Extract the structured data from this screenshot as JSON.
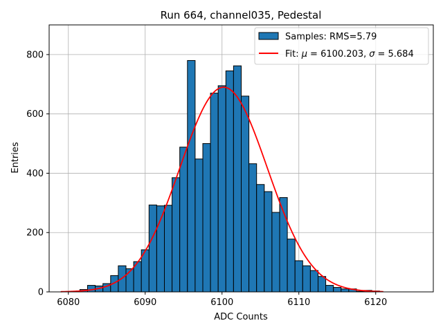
{
  "chart_data": {
    "type": "bar",
    "title": "Run 664, channel035, Pedestal",
    "xlabel": "ADC Counts",
    "ylabel": "Entries",
    "xlim": [
      6077.5,
      6127.5
    ],
    "ylim": [
      0,
      900
    ],
    "xticks": [
      6080,
      6090,
      6100,
      6110,
      6120
    ],
    "yticks": [
      0,
      200,
      400,
      600,
      800
    ],
    "grid": true,
    "legend_position": "top-right",
    "bar_color": "#1f77b4",
    "fit_color": "#ff0000",
    "bin_width": 1,
    "histogram": {
      "name": "Samples: RMS=5.79",
      "bins": [
        6082,
        6083,
        6084,
        6085,
        6086,
        6087,
        6088,
        6089,
        6090,
        6091,
        6092,
        6093,
        6094,
        6095,
        6096,
        6097,
        6098,
        6099,
        6100,
        6101,
        6102,
        6103,
        6104,
        6105,
        6106,
        6107,
        6108,
        6109,
        6110,
        6111,
        6112,
        6113,
        6114,
        6115,
        6116,
        6117,
        6118,
        6119,
        6120
      ],
      "counts": [
        8,
        22,
        20,
        28,
        55,
        88,
        78,
        102,
        142,
        293,
        290,
        292,
        385,
        488,
        780,
        448,
        500,
        670,
        695,
        745,
        762,
        660,
        432,
        362,
        338,
        268,
        318,
        178,
        105,
        88,
        72,
        52,
        22,
        15,
        10,
        10,
        2,
        5,
        3
      ]
    },
    "fit": {
      "name_prefix": "Fit: ",
      "mu_symbol": "μ",
      "mu_value": "= 6100.203,",
      "sigma_symbol": "σ",
      "sigma_value": "= 5.684",
      "mu": 6100.203,
      "sigma": 5.684,
      "amplitude": 690,
      "x_range": [
        6079,
        6121
      ]
    }
  }
}
